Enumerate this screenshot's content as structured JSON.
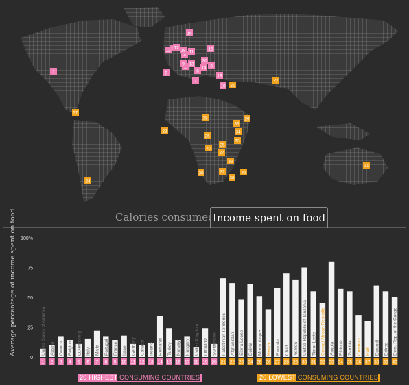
{
  "tabs": {
    "calories": "Calories consumed",
    "income": "Income spent on food"
  },
  "legend": {
    "high_prefix": "20 HIGHEST",
    "high_suffix": " CONSUMING COUNTRIES",
    "low_prefix": "20 LOWEST",
    "low_suffix": " CONSUMING COUNTRIES"
  },
  "colors": {
    "high": "#f07fb6",
    "low": "#f0a21c",
    "bar": "#f2f2f2",
    "bg": "#2b2b2b",
    "map": "#6a6a6a"
  },
  "map_markers": [
    {
      "n": "1",
      "group": "high"
    },
    {
      "n": "2",
      "group": "high"
    },
    {
      "n": "3",
      "group": "high"
    },
    {
      "n": "4",
      "group": "high"
    },
    {
      "n": "5",
      "group": "high"
    },
    {
      "n": "6",
      "group": "high"
    },
    {
      "n": "7",
      "group": "high"
    },
    {
      "n": "8",
      "group": "high"
    },
    {
      "n": "9",
      "group": "high"
    },
    {
      "n": "10",
      "group": "high"
    },
    {
      "n": "11",
      "group": "high"
    },
    {
      "n": "12",
      "group": "high"
    },
    {
      "n": "13",
      "group": "high"
    },
    {
      "n": "14",
      "group": "high"
    },
    {
      "n": "15",
      "group": "high"
    },
    {
      "n": "16",
      "group": "high"
    },
    {
      "n": "17",
      "group": "high"
    },
    {
      "n": "18",
      "group": "high"
    },
    {
      "n": "19",
      "group": "high"
    },
    {
      "n": "20",
      "group": "high"
    },
    {
      "n": "21",
      "group": "low"
    },
    {
      "n": "22",
      "group": "low"
    },
    {
      "n": "23",
      "group": "low"
    },
    {
      "n": "24",
      "group": "low"
    },
    {
      "n": "25",
      "group": "low"
    },
    {
      "n": "26",
      "group": "low"
    },
    {
      "n": "27",
      "group": "low"
    },
    {
      "n": "28",
      "group": "low"
    },
    {
      "n": "29",
      "group": "low"
    },
    {
      "n": "30",
      "group": "low"
    },
    {
      "n": "31",
      "group": "low"
    },
    {
      "n": "32",
      "group": "low"
    },
    {
      "n": "33",
      "group": "low"
    },
    {
      "n": "34",
      "group": "low"
    },
    {
      "n": "35",
      "group": "low"
    },
    {
      "n": "36",
      "group": "low"
    },
    {
      "n": "37",
      "group": "low"
    },
    {
      "n": "38",
      "group": "low"
    },
    {
      "n": "39",
      "group": "low"
    },
    {
      "n": "40",
      "group": "low"
    }
  ],
  "chart_data": {
    "type": "bar",
    "ylabel": "Average percentage of income spent on food",
    "ylim": [
      0,
      100
    ],
    "yticks": [
      "0",
      "25",
      "50",
      "75",
      "100%"
    ],
    "categories": [
      {
        "n": "1",
        "name": "United States of America",
        "group": "high",
        "value": 7
      },
      {
        "n": "2",
        "name": "Austria",
        "group": "high",
        "value": 10
      },
      {
        "n": "3",
        "name": "Greece",
        "group": "high",
        "value": 17
      },
      {
        "n": "4",
        "name": "Belgium",
        "group": "high",
        "value": 14
      },
      {
        "n": "5",
        "name": "Luxembourg",
        "group": "high",
        "value": 11
      },
      {
        "n": "6",
        "name": "Italy",
        "group": "high",
        "value": 15
      },
      {
        "n": "7",
        "name": "Malta",
        "group": "high",
        "value": 22
      },
      {
        "n": "8",
        "name": "Portugal",
        "group": "high",
        "value": 17
      },
      {
        "n": "9",
        "name": "France",
        "group": "high",
        "value": 14
      },
      {
        "n": "10",
        "name": "Israel",
        "group": "high",
        "value": 18
      },
      {
        "n": "11",
        "name": "Germany",
        "group": "high",
        "value": 11
      },
      {
        "n": "12",
        "name": "Canada",
        "group": "high",
        "value": 10
      },
      {
        "n": "13",
        "name": "Ireland",
        "group": "high",
        "value": 12
      },
      {
        "n": "14",
        "name": "Romania",
        "group": "high",
        "value": 34
      },
      {
        "n": "15",
        "name": "Turkey",
        "group": "high",
        "value": 24
      },
      {
        "n": "16",
        "name": "Norway",
        "group": "high",
        "value": 14
      },
      {
        "n": "17",
        "name": "Hungary",
        "group": "high",
        "value": 17
      },
      {
        "n": "18",
        "name": "United Kingdom",
        "group": "high",
        "value": 8
      },
      {
        "n": "19",
        "name": "Lithuania",
        "group": "high",
        "value": 24
      },
      {
        "n": "20",
        "name": "Switzerland",
        "group": "high",
        "value": 11
      },
      {
        "n": "21",
        "name": "Palestinian Territories",
        "group": "low",
        "value": 66
      },
      {
        "n": "22",
        "name": "Afghanistan",
        "group": "low",
        "value": 62
      },
      {
        "n": "23",
        "name": "Sierra Leone",
        "group": "low",
        "value": 48
      },
      {
        "n": "24",
        "name": "Bolivia",
        "group": "low",
        "value": 61
      },
      {
        "n": "25",
        "name": "Mozambique",
        "group": "low",
        "value": 51
      },
      {
        "n": "26",
        "name": "Kenya",
        "group": "low",
        "value": 40
      },
      {
        "n": "27",
        "name": "Rwanda",
        "group": "low",
        "value": 58
      },
      {
        "n": "28",
        "name": "Chad",
        "group": "low",
        "value": 70
      },
      {
        "n": "29",
        "name": "Yemen",
        "group": "low",
        "value": 65
      },
      {
        "n": "30",
        "name": "United Republic of Tanzania",
        "group": "low",
        "value": 75
      },
      {
        "n": "31",
        "name": "Timor-Leste",
        "group": "low",
        "value": 55
      },
      {
        "n": "32",
        "name": "Central African Republic",
        "group": "low",
        "value": 45
      },
      {
        "n": "33",
        "name": "Angola",
        "group": "low",
        "value": 80
      },
      {
        "n": "34",
        "name": "Ethiopia",
        "group": "low",
        "value": 57
      },
      {
        "n": "35",
        "name": "Zambia",
        "group": "low",
        "value": 55
      },
      {
        "n": "36",
        "name": "Comoros",
        "group": "low",
        "value": 35
      },
      {
        "n": "37",
        "name": "Haiti",
        "group": "low",
        "value": 30
      },
      {
        "n": "38",
        "name": "Burundi",
        "group": "low",
        "value": 60
      },
      {
        "n": "39",
        "name": "Eritrea",
        "group": "low",
        "value": 55
      },
      {
        "n": "40",
        "name": "Dem. Rep. of the Congo",
        "group": "low",
        "value": 50
      }
    ]
  }
}
